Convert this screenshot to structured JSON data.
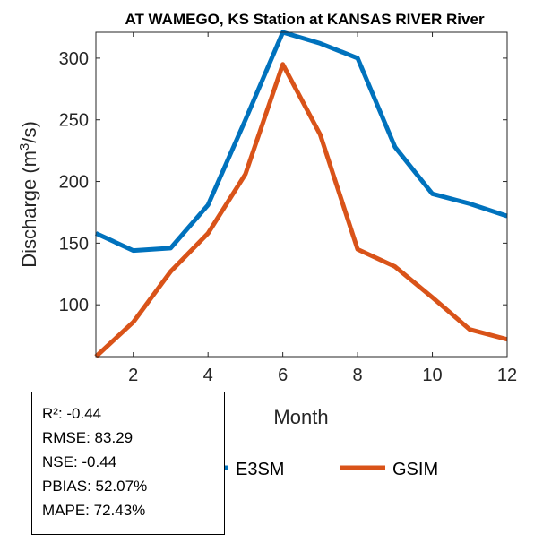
{
  "chart_data": {
    "type": "line",
    "title": "AT WAMEGO, KS  Station at  KANSAS RIVER  River",
    "xlabel": "Month",
    "ylabel": "Discharge (m³/s)",
    "xlim": [
      1,
      12
    ],
    "ylim": [
      58,
      321
    ],
    "xticks": [
      2,
      4,
      6,
      8,
      10,
      12
    ],
    "yticks": [
      100,
      150,
      200,
      250,
      300
    ],
    "x": [
      1,
      2,
      3,
      4,
      5,
      6,
      7,
      8,
      9,
      10,
      11,
      12
    ],
    "series": [
      {
        "name": "E3SM",
        "color": "#0072BD",
        "values": [
          158,
          144,
          146,
          181,
          250,
          321,
          312,
          300,
          228,
          190,
          182,
          172
        ]
      },
      {
        "name": "GSIM",
        "color": "#D95319",
        "values": [
          58,
          86,
          127,
          158,
          206,
          295,
          238,
          145,
          131,
          106,
          80,
          72
        ]
      }
    ],
    "legend_position": "bottom",
    "stats": [
      "R²: -0.44",
      "RMSE: 83.29",
      "NSE: -0.44",
      "PBIAS: 52.07%",
      "MAPE: 72.43%"
    ]
  }
}
